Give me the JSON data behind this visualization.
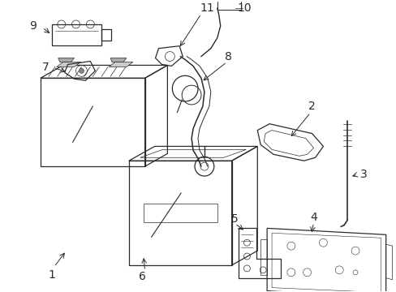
{
  "bg_color": "#ffffff",
  "line_color": "#2a2a2a",
  "label_color": "#000000",
  "fontsize": 9
}
